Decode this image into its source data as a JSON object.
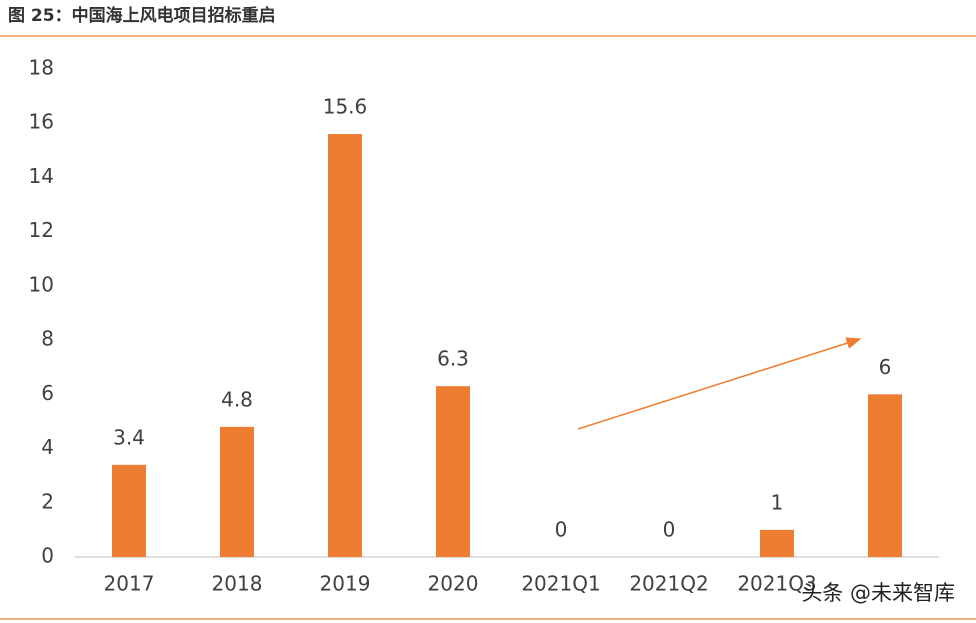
{
  "chart_data": {
    "type": "bar",
    "title": "图 25：中国海上风电项目招标重启",
    "categories": [
      "2017",
      "2018",
      "2019",
      "2020",
      "2021Q1",
      "2021Q2",
      "2021Q3",
      null
    ],
    "values": [
      3.4,
      4.8,
      15.6,
      6.3,
      0,
      0,
      1,
      6
    ],
    "color": "#ed7d31",
    "ylim": [
      0,
      18
    ],
    "yticks": [
      0,
      2,
      4,
      6,
      8,
      10,
      12,
      14,
      16,
      18
    ],
    "grid": false,
    "watermark": "头条 @未来智库"
  }
}
